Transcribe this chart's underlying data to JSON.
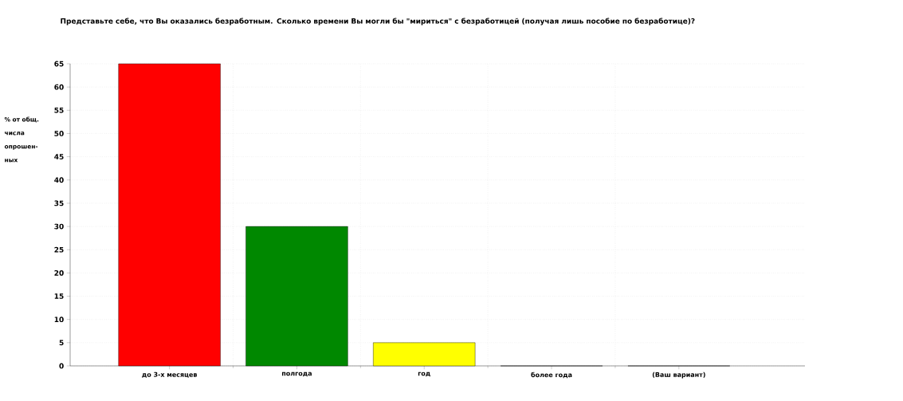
{
  "chart_data": {
    "type": "bar",
    "title": "Представьте себе, что Вы оказались безработным. Сколько времени Вы могли бы \"мириться\" с безработицей (получая лишь пособие по безработице)?",
    "ylabel": "% от общ. числа опрошен-ных",
    "categories": [
      "до 3-х месяцев",
      "полгода",
      "год",
      "более года",
      "(Ваш вариант)"
    ],
    "values": [
      65,
      30,
      5,
      0,
      0
    ],
    "colors": [
      "#ff0000",
      "#008800",
      "#ffff00",
      "#0000cc",
      "#c0c0c0"
    ],
    "ylim": [
      0,
      65
    ],
    "yticks": [
      0,
      5,
      10,
      15,
      20,
      25,
      30,
      35,
      40,
      45,
      50,
      55,
      60,
      65
    ],
    "grid": true
  }
}
